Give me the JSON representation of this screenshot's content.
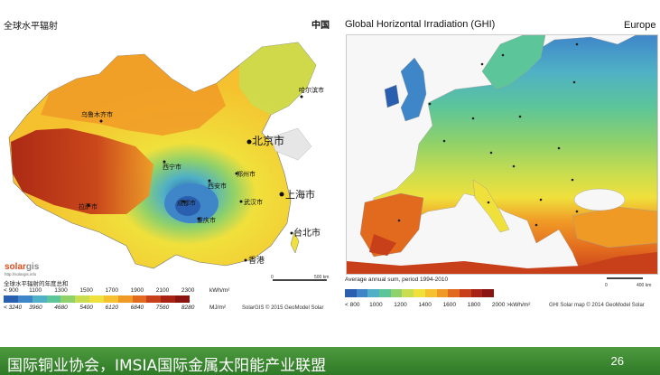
{
  "china": {
    "title": "全球水平辐射",
    "region": "中国",
    "cities": [
      "哈尔滨市",
      "乌鲁木齐市",
      "北京市",
      "西宁市",
      "西安市",
      "郑州市",
      "上海市",
      "拉萨市",
      "成都市",
      "武汉市",
      "重庆市",
      "台北市",
      "香港"
    ],
    "legend_title": "全球水平辐射的年度总和",
    "kwh_ticks": [
      "< 900",
      "1100",
      "1300",
      "1500",
      "1700",
      "1900",
      "2100",
      "2300"
    ],
    "kwh_unit": "kWh/m²",
    "mj_ticks": [
      "< 3240",
      "3960",
      "4680",
      "5400",
      "6120",
      "6840",
      "7560",
      "8280"
    ],
    "mj_unit": "MJ/m²",
    "credit": "SolarGIS © 2015 GeoModel Solar",
    "scale_labels": [
      "0",
      "500 km"
    ],
    "logo_text_1": "solar",
    "logo_text_2": "gis",
    "logo_url": "http://solargis.info"
  },
  "europe": {
    "title": "Global Horizontal Irradiation (GHI)",
    "region": "Europe",
    "caption": "Average annual sum, period 1994-2010",
    "ticks": [
      "< 800",
      "1000",
      "1200",
      "1400",
      "1600",
      "1800",
      "2000 >"
    ],
    "unit": "kWh/m²",
    "credit": "GHI Solar map © 2014 GeoModel Solar",
    "scale_labels": [
      "0",
      "400 km"
    ]
  },
  "legend_colors": [
    "#2a5fb0",
    "#3f86c9",
    "#4fb0c6",
    "#5cc59a",
    "#8fd16a",
    "#c9dd4f",
    "#f0e03c",
    "#f5c12e",
    "#f09a26",
    "#e26a1e",
    "#c8401a",
    "#a82213",
    "#8a1410"
  ],
  "footer": {
    "text": "国际铜业协会，IMSIA国际金属太阳能产业联盟",
    "page": "26"
  }
}
